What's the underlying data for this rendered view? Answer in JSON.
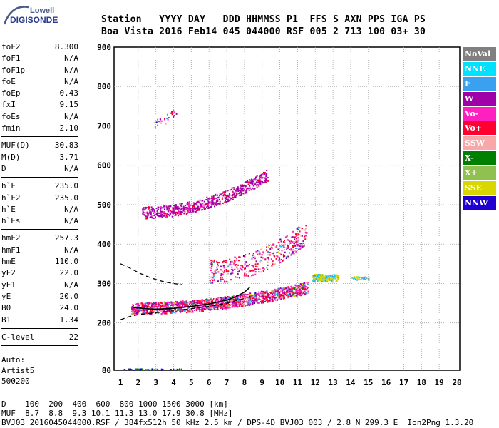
{
  "header": {
    "line1": "Station   YYYY DAY   DDD HHMMSS P1  FFS S AXN PPS IGA PS",
    "line2": "Boa Vista 2016 Feb14 045 044000 RSF 005 2 713 100 03+ 30"
  },
  "logo": {
    "top": "Lowell",
    "bottom": "DIGISONDE",
    "colors": {
      "top": "#4a5a8a",
      "bottom": "#2a3a8a",
      "arc": "#4a5a8a"
    }
  },
  "parameters": [
    {
      "group": 1,
      "items": [
        {
          "label": "foF2",
          "value": "8.300"
        },
        {
          "label": "foF1",
          "value": "N/A"
        },
        {
          "label": "foF1p",
          "value": "N/A"
        },
        {
          "label": "foE",
          "value": "N/A"
        },
        {
          "label": "foEp",
          "value": "0.43"
        },
        {
          "label": "fxI",
          "value": "9.15"
        },
        {
          "label": "foEs",
          "value": "N/A"
        },
        {
          "label": "fmin",
          "value": "2.10"
        }
      ]
    },
    {
      "group": 2,
      "items": [
        {
          "label": "MUF(D)",
          "value": "30.83"
        },
        {
          "label": "M(D)",
          "value": "3.71"
        },
        {
          "label": "D",
          "value": "N/A"
        }
      ]
    },
    {
      "group": 3,
      "items": [
        {
          "label": "h`F",
          "value": "235.0"
        },
        {
          "label": "h`F2",
          "value": "235.0"
        },
        {
          "label": "h`E",
          "value": "N/A"
        },
        {
          "label": "h`Es",
          "value": "N/A"
        }
      ]
    },
    {
      "group": 4,
      "items": [
        {
          "label": "hmF2",
          "value": "257.3"
        },
        {
          "label": "hmF1",
          "value": "N/A"
        },
        {
          "label": "hmE",
          "value": "110.0"
        },
        {
          "label": "yF2",
          "value": "22.0"
        },
        {
          "label": "yF1",
          "value": "N/A"
        },
        {
          "label": "yE",
          "value": "20.0"
        },
        {
          "label": "B0",
          "value": "24.0"
        },
        {
          "label": "B1",
          "value": "1.34"
        }
      ]
    },
    {
      "group": 5,
      "items": [
        {
          "label": "C-level",
          "value": "22"
        }
      ]
    }
  ],
  "scaling_note": [
    "Auto:",
    "Artist5",
    "500200"
  ],
  "footer": {
    "line1": "D    100  200  400  600  800 1000 1500 3000 [km]",
    "line2": "MUF  8.7  8.8  9.3 10.1 11.3 13.0 17.9 30.8 [MHz]",
    "line3": "BVJ03_2016045044000.RSF / 384fx512h 50 kHz 2.5 km / DPS-4D BVJ03 003 / 2.8 N 299.3 E  Ion2Png 1.3.20"
  },
  "legend": [
    {
      "label": "NoVal",
      "color": "#808080"
    },
    {
      "label": "NNE",
      "color": "#00e0ff"
    },
    {
      "label": "E",
      "color": "#3aa0f0"
    },
    {
      "label": "W",
      "color": "#a000a8"
    },
    {
      "label": "Vo-",
      "color": "#ff20c0"
    },
    {
      "label": "Vo+",
      "color": "#ff0030"
    },
    {
      "label": "SSW",
      "color": "#f8a8a8"
    },
    {
      "label": "X-",
      "color": "#008000"
    },
    {
      "label": "X+",
      "color": "#90c050"
    },
    {
      "label": "SSE",
      "color": "#d8d800"
    },
    {
      "label": "NNW",
      "color": "#2000d0"
    }
  ],
  "chart_data": {
    "type": "scatter",
    "title": "",
    "xlabel": "",
    "ylabel": "",
    "xlim": [
      1,
      20
    ],
    "ylim": [
      80,
      900
    ],
    "xticks": [
      "1",
      "2",
      "3",
      "4",
      "5",
      "6",
      "7",
      "8",
      "9",
      "10",
      "11",
      "12",
      "13",
      "14",
      "15",
      "16",
      "17",
      "18",
      "19",
      "20"
    ],
    "yticks": [
      "80",
      "200",
      "300",
      "400",
      "500",
      "600",
      "700",
      "800",
      "900"
    ],
    "grid": true,
    "grid_color": "#a0a0a0",
    "legend_position": "right",
    "x_units": "MHz",
    "y_units": "km",
    "traces": [
      {
        "name": "F2 O-trace (black profile)",
        "color": "#000000",
        "x": [
          1.6,
          2.0,
          2.5,
          3.0,
          4.0,
          5.0,
          6.0,
          7.0,
          7.5,
          8.0,
          8.3
        ],
        "y": [
          240,
          238,
          236,
          235,
          237,
          242,
          248,
          258,
          266,
          278,
          290
        ]
      },
      {
        "name": "Model profile lower dashed",
        "color": "#000000",
        "dashed": true,
        "x": [
          1.0,
          1.5,
          2.0,
          3.0,
          4.0,
          5.0,
          6.0,
          7.0,
          8.0,
          8.5
        ],
        "y": [
          208,
          216,
          221,
          226,
          231,
          236,
          242,
          250,
          262,
          270
        ]
      },
      {
        "name": "Model profile upper dashed",
        "color": "#000000",
        "dashed": true,
        "x": [
          1.0,
          1.5,
          2.0,
          2.5,
          3.0,
          3.5,
          4.0,
          4.5
        ],
        "y": [
          350,
          340,
          328,
          318,
          310,
          304,
          300,
          297
        ]
      }
    ],
    "clusters": [
      {
        "name": "F-layer 1-hop echoes",
        "x_range": [
          1.6,
          11.6
        ],
        "y_base": [
          232,
          285
        ],
        "y_spread": 30,
        "density": 1500
      },
      {
        "name": "F-layer 2-hop echoes",
        "x_range": [
          2.2,
          9.3
        ],
        "y_base": [
          475,
          570
        ],
        "y_spread": 30,
        "density": 650
      },
      {
        "name": "Scattered echoes 300-460 km",
        "x_range": [
          6.0,
          11.5
        ],
        "y_base": [
          320,
          420
        ],
        "y_spread": 60,
        "density": 400
      },
      {
        "name": "Spread echoes 11-13 MHz",
        "x_range": [
          11.8,
          13.3
        ],
        "y_base": [
          312,
          312
        ],
        "y_spread": 18,
        "density": 180
      },
      {
        "name": "Spread echoes 14-15 MHz",
        "x_range": [
          14.0,
          15.0
        ],
        "y_base": [
          313,
          313
        ],
        "y_spread": 8,
        "density": 40
      },
      {
        "name": "Top isolated echoes",
        "x_range": [
          2.8,
          4.2
        ],
        "y_base": [
          700,
          740
        ],
        "y_spread": 25,
        "density": 30
      },
      {
        "name": "Low noise 80 km",
        "x_range": [
          1.1,
          4.5
        ],
        "y_base": [
          82,
          82
        ],
        "y_spread": 4,
        "density": 60
      }
    ]
  }
}
